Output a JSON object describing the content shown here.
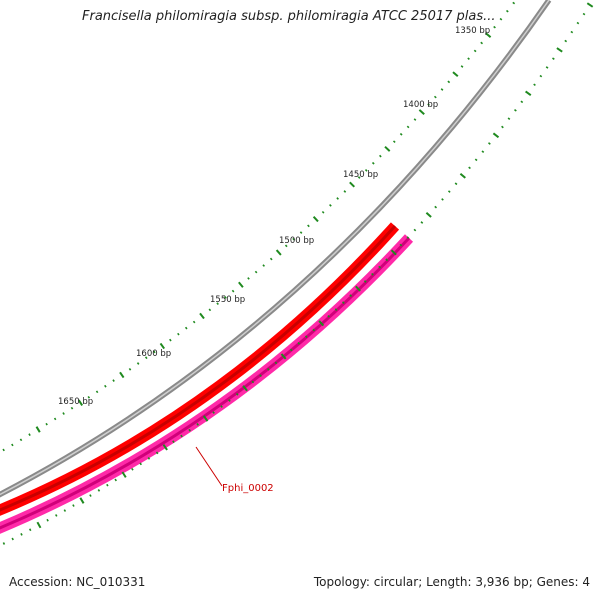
{
  "title": "Francisella philomiragia subsp. philomiragia ATCC 25017 plas...",
  "footer": {
    "accession": "Accession: NC_010331",
    "summary": "Topology: circular; Length: 3,936 bp; Genes: 4"
  },
  "scale_labels": [
    "1350 bp",
    "1400 bp",
    "1450 bp",
    "1500 bp",
    "1550 bp",
    "1600 bp",
    "1650 bp"
  ],
  "gene": {
    "label": "Fphi_0002"
  },
  "colors": {
    "backbone": "#8a8a8a",
    "forward_cds": "#ff0000",
    "reverse_cds": "#ff2aa8",
    "ticks": "#1f8a1f",
    "gene_label": "#cc0000"
  }
}
